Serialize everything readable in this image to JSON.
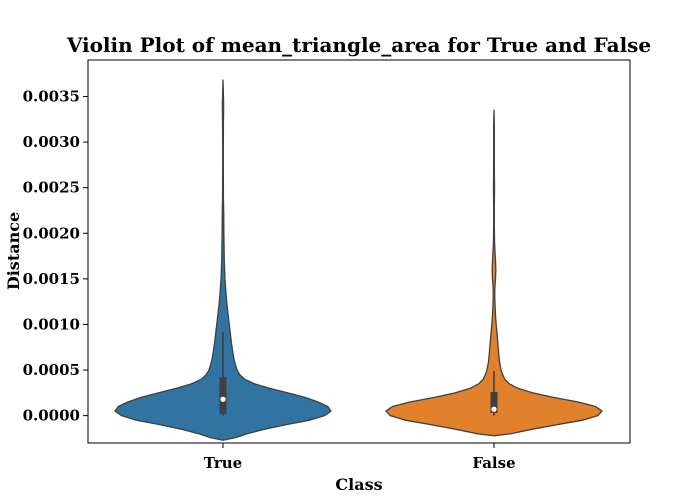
{
  "chart_data": {
    "type": "violin",
    "title": "Violin Plot of mean_triangle_area for True and False",
    "xlabel": "Class",
    "ylabel": "Distance",
    "categories": [
      "True",
      "False"
    ],
    "colors": [
      "#3274a1",
      "#e1812c"
    ],
    "ylim": [
      -0.0003,
      0.0039
    ],
    "yticks": [
      0.0,
      0.0005,
      0.001,
      0.0015,
      0.002,
      0.0025,
      0.003,
      0.0035
    ],
    "ytick_labels": [
      "0.0000",
      "0.0005",
      "0.0010",
      "0.0015",
      "0.0020",
      "0.0025",
      "0.0030",
      "0.0035"
    ],
    "grid": false,
    "violins": [
      {
        "category": "True",
        "min": -0.00027,
        "max": 0.00368,
        "box": {
          "q1": 2e-05,
          "median": 0.00018,
          "q3": 0.00042,
          "whisker_low": 0.0,
          "whisker_high": 0.00092
        },
        "profile": [
          [
            -0.00027,
            0.0
          ],
          [
            -0.00024,
            0.12
          ],
          [
            -0.0002,
            0.22
          ],
          [
            -0.00015,
            0.38
          ],
          [
            -0.0001,
            0.58
          ],
          [
            -5e-05,
            0.8
          ],
          [
            0.0,
            0.94
          ],
          [
            5e-05,
            1.0
          ],
          [
            0.0001,
            0.97
          ],
          [
            0.00015,
            0.88
          ],
          [
            0.0002,
            0.76
          ],
          [
            0.00025,
            0.6
          ],
          [
            0.0003,
            0.43
          ],
          [
            0.00035,
            0.29
          ],
          [
            0.0004,
            0.2
          ],
          [
            0.00045,
            0.155
          ],
          [
            0.0005,
            0.13
          ],
          [
            0.0006,
            0.105
          ],
          [
            0.0007,
            0.09
          ],
          [
            0.0008,
            0.078
          ],
          [
            0.0009,
            0.068
          ],
          [
            0.001,
            0.058
          ],
          [
            0.0011,
            0.048
          ],
          [
            0.0012,
            0.038
          ],
          [
            0.0013,
            0.03
          ],
          [
            0.0014,
            0.024
          ],
          [
            0.0015,
            0.018
          ],
          [
            0.0017,
            0.012
          ],
          [
            0.002,
            0.008
          ],
          [
            0.0022,
            0.007
          ],
          [
            0.0024,
            0.004
          ],
          [
            0.0027,
            0.003
          ],
          [
            0.003,
            0.003
          ],
          [
            0.0032,
            0.004
          ],
          [
            0.0034,
            0.006
          ],
          [
            0.0035,
            0.004
          ],
          [
            0.0036,
            0.002
          ],
          [
            0.00368,
            0.0
          ]
        ]
      },
      {
        "category": "False",
        "min": -0.00022,
        "max": 0.00335,
        "box": {
          "q1": 3e-05,
          "median": 7e-05,
          "q3": 0.00026,
          "whisker_low": 0.0,
          "whisker_high": 0.00049
        },
        "profile": [
          [
            -0.00022,
            0.0
          ],
          [
            -0.0002,
            0.15
          ],
          [
            -0.00015,
            0.35
          ],
          [
            -0.0001,
            0.58
          ],
          [
            -5e-05,
            0.82
          ],
          [
            0.0,
            0.96
          ],
          [
            5e-05,
            1.0
          ],
          [
            0.0001,
            0.94
          ],
          [
            0.00015,
            0.78
          ],
          [
            0.0002,
            0.55
          ],
          [
            0.00025,
            0.36
          ],
          [
            0.0003,
            0.22
          ],
          [
            0.00035,
            0.14
          ],
          [
            0.0004,
            0.1
          ],
          [
            0.00045,
            0.08
          ],
          [
            0.0005,
            0.065
          ],
          [
            0.0006,
            0.05
          ],
          [
            0.0007,
            0.042
          ],
          [
            0.0008,
            0.035
          ],
          [
            0.0009,
            0.028
          ],
          [
            0.001,
            0.02
          ],
          [
            0.0011,
            0.014
          ],
          [
            0.0012,
            0.01
          ],
          [
            0.0013,
            0.007
          ],
          [
            0.0014,
            0.008
          ],
          [
            0.0015,
            0.014
          ],
          [
            0.0016,
            0.017
          ],
          [
            0.0017,
            0.014
          ],
          [
            0.0018,
            0.009
          ],
          [
            0.0019,
            0.005
          ],
          [
            0.0021,
            0.003
          ],
          [
            0.0023,
            0.003
          ],
          [
            0.0025,
            0.005
          ],
          [
            0.0026,
            0.004
          ],
          [
            0.0028,
            0.003
          ],
          [
            0.003,
            0.003
          ],
          [
            0.0032,
            0.003
          ],
          [
            0.00335,
            0.0
          ]
        ]
      }
    ]
  }
}
